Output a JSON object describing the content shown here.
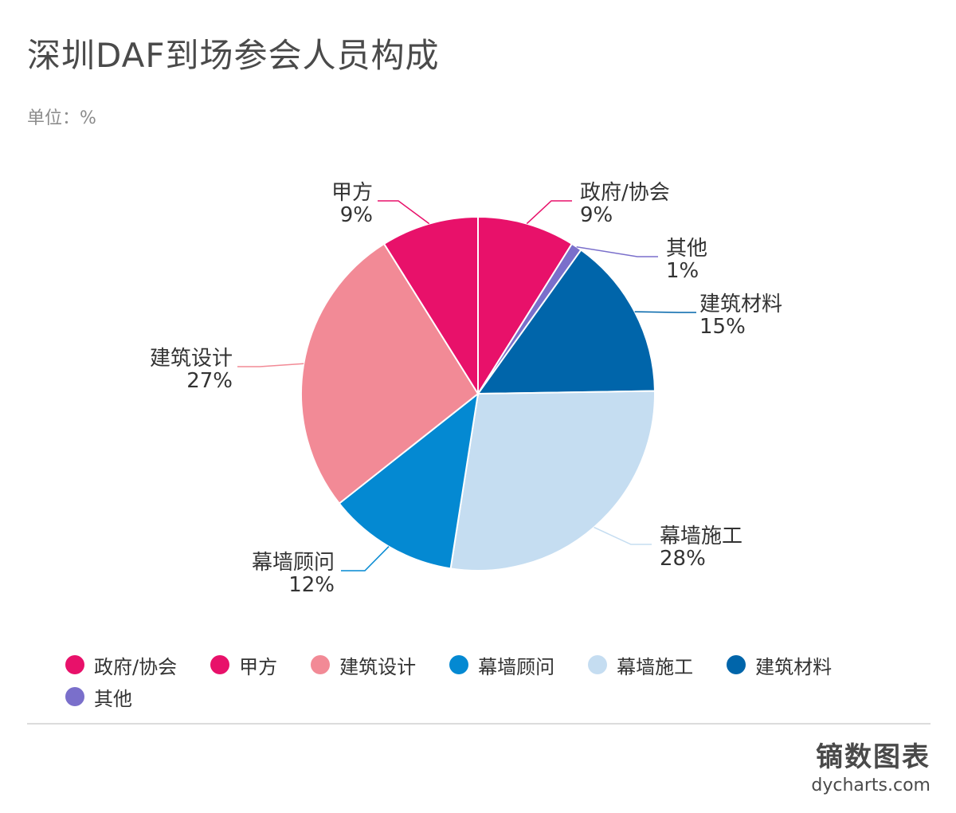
{
  "header": {
    "title": "深圳DAF到场参会人员构成",
    "unit": "单位：%"
  },
  "chart_data": {
    "type": "pie",
    "title": "深圳DAF到场参会人员构成",
    "unit": "%",
    "slices": [
      {
        "name": "政府/协会",
        "value": 9,
        "label": "9%",
        "color": "#E8116A"
      },
      {
        "name": "其他",
        "value": 1,
        "label": "1%",
        "color": "#7A6FCB"
      },
      {
        "name": "建筑材料",
        "value": 15,
        "label": "15%",
        "color": "#0065AA"
      },
      {
        "name": "幕墙施工",
        "value": 28,
        "label": "28%",
        "color": "#C5DDF1"
      },
      {
        "name": "幕墙顾问",
        "value": 12,
        "label": "12%",
        "color": "#0489D2"
      },
      {
        "name": "建筑设计",
        "value": 27,
        "label": "27%",
        "color": "#F28A96"
      },
      {
        "name": "甲方",
        "value": 9,
        "label": "9%",
        "color": "#E8116A"
      }
    ],
    "legend": [
      {
        "name": "政府/协会",
        "color": "#E8116A"
      },
      {
        "name": "甲方",
        "color": "#E8116A"
      },
      {
        "name": "建筑设计",
        "color": "#F28A96"
      },
      {
        "name": "幕墙顾问",
        "color": "#0489D2"
      },
      {
        "name": "幕墙施工",
        "color": "#C5DDF1"
      },
      {
        "name": "建筑材料",
        "color": "#0065AA"
      },
      {
        "name": "其他",
        "color": "#7A6FCB"
      }
    ],
    "legend_position": "bottom"
  },
  "footer": {
    "brand": "镝数图表",
    "url": "dycharts.com"
  }
}
